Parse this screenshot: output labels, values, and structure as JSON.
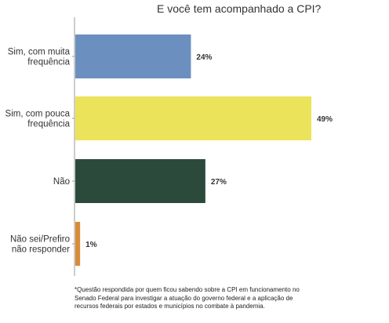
{
  "chart_data": {
    "type": "bar",
    "orientation": "horizontal",
    "title": "E você tem acompanhado a CPI?",
    "categories": [
      [
        "Sim, com muita",
        "frequência"
      ],
      [
        "Sim, com pouca",
        "frequência"
      ],
      [
        "Não"
      ],
      [
        "Não sei/Prefiro",
        "não responder"
      ]
    ],
    "values": [
      24,
      49,
      27,
      1
    ],
    "value_labels": [
      "24%",
      "49%",
      "27%",
      "1%"
    ],
    "colors": [
      "#6b8fbf",
      "#ebe35a",
      "#2c4a3c",
      "#d98b3a"
    ],
    "xlim": [
      0,
      50
    ],
    "unit": "%",
    "grid": false
  },
  "footnote": "*Questão respondida por quem ficou sabendo sobre a CPI em funcionamento no Senado Federal para investigar a atuação do governo federal e a aplicação de recursos federais por estados e municípios no combate à pandemia."
}
